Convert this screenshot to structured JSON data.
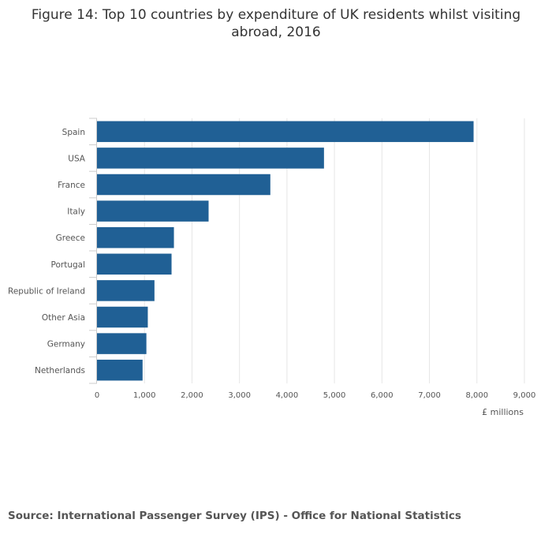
{
  "title": "Figure 14: Top 10 countries by expenditure of UK residents whilst visiting abroad, 2016",
  "source": "Source: International Passenger Survey (IPS) - Office for National Statistics",
  "colors": {
    "bar": "#206095",
    "grid": "#e6e6e6",
    "axis": "#cccccc"
  },
  "chart_data": {
    "type": "bar",
    "orientation": "horizontal",
    "categories": [
      "Spain",
      "USA",
      "France",
      "Italy",
      "Greece",
      "Portugal",
      "Republic of Ireland",
      "Other Asia",
      "Germany",
      "Netherlands"
    ],
    "values": [
      7930,
      4780,
      3650,
      2350,
      1620,
      1570,
      1210,
      1070,
      1040,
      960
    ],
    "xlabel": "£ millions",
    "ylabel": "",
    "xlim": [
      0,
      9000
    ],
    "xticks": [
      0,
      1000,
      2000,
      3000,
      4000,
      5000,
      6000,
      7000,
      8000,
      9000
    ],
    "xtick_labels": [
      "0",
      "1,000",
      "2,000",
      "3,000",
      "4,000",
      "5,000",
      "6,000",
      "7,000",
      "8,000",
      "9,000"
    ],
    "grid": true
  }
}
